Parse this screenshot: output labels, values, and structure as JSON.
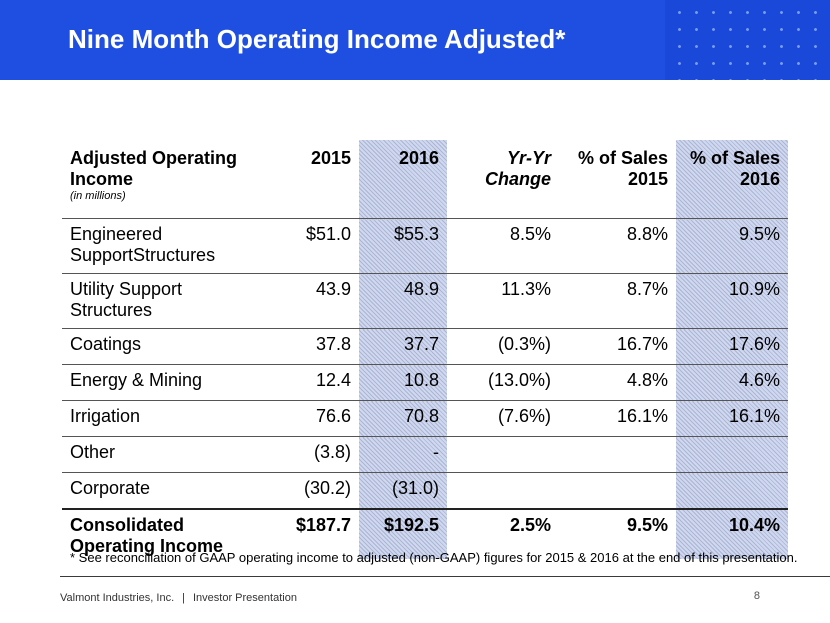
{
  "title": "Nine Month Operating Income Adjusted*",
  "table": {
    "header": {
      "label": "Adjusted Operating Income",
      "sublabel": "(in millions)",
      "y2015": "2015",
      "y2016": "2016",
      "yoy": "Yr-Yr Change",
      "pct_label": "% of Sales",
      "pct2015_year": "2015",
      "pct2016_year": "2016"
    },
    "rows": [
      {
        "label": "Engineered SupportStructures",
        "v2015": "$51.0",
        "v2016": "$55.3",
        "yoy": "8.5%",
        "pct2015": "8.8%",
        "pct2016": "9.5%"
      },
      {
        "label": "Utility Support Structures",
        "v2015": "43.9",
        "v2016": "48.9",
        "yoy": "11.3%",
        "pct2015": "8.7%",
        "pct2016": "10.9%"
      },
      {
        "label": "Coatings",
        "v2015": "37.8",
        "v2016": "37.7",
        "yoy": "(0.3%)",
        "pct2015": "16.7%",
        "pct2016": "17.6%"
      },
      {
        "label": "Energy & Mining",
        "v2015": "12.4",
        "v2016": "10.8",
        "yoy": "(13.0%)",
        "pct2015": "4.8%",
        "pct2016": "4.6%"
      },
      {
        "label": "Irrigation",
        "v2015": "76.6",
        "v2016": "70.8",
        "yoy": "(7.6%)",
        "pct2015": "16.1%",
        "pct2016": "16.1%"
      },
      {
        "label": "Other",
        "v2015": "(3.8)",
        "v2016": "-",
        "yoy": "",
        "pct2015": "",
        "pct2016": ""
      },
      {
        "label": "Corporate",
        "v2015": "(30.2)",
        "v2016": "(31.0)",
        "yoy": "",
        "pct2015": "",
        "pct2016": ""
      }
    ],
    "total": {
      "label": "Consolidated Operating Income",
      "v2015": "$187.7",
      "v2016": "$192.5",
      "yoy": "2.5%",
      "pct2015": "9.5%",
      "pct2016": "10.4%"
    }
  },
  "footnote": "* See reconciliation of GAAP operating income to adjusted (non-GAAP) figures for 2015 & 2016 at the end of this presentation.",
  "footer": {
    "company": "Valmont Industries, Inc.",
    "separator": "|",
    "section": "Investor Presentation",
    "page_number": "8"
  },
  "colors": {
    "banner": "#1f4fe0",
    "highlight": "#cfd8f2"
  }
}
